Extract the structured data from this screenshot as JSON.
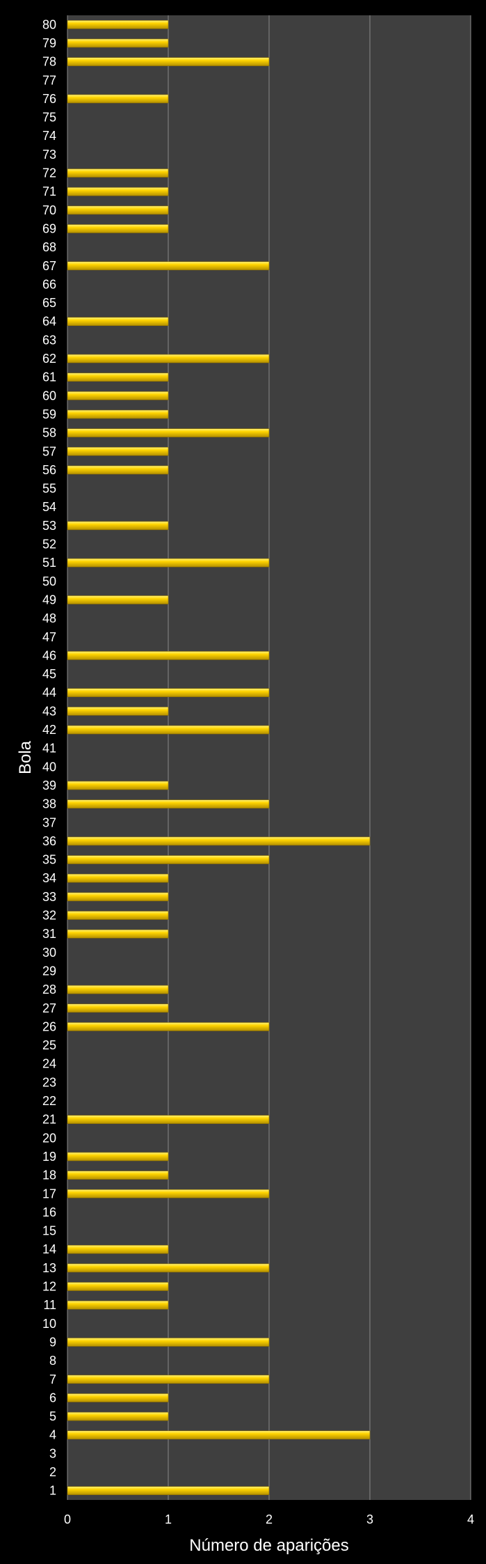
{
  "chart_data": {
    "type": "bar",
    "orientation": "horizontal",
    "title": "",
    "xlabel": "Número de aparições",
    "ylabel": "Bola",
    "xlim": [
      0,
      4
    ],
    "x_ticks": [
      0,
      1,
      2,
      3,
      4
    ],
    "grid": "vertical",
    "legend": "none",
    "colors": {
      "background": "#000000",
      "plot_area": "#3f3f3f",
      "bar_fill": "#ffd400",
      "bar_highlight": "#fff27a",
      "bar_shadow": "#b38f00",
      "grid": "#8a8a8a",
      "text": "#ffffff"
    },
    "categories": [
      "1",
      "2",
      "3",
      "4",
      "5",
      "6",
      "7",
      "8",
      "9",
      "10",
      "11",
      "12",
      "13",
      "14",
      "15",
      "16",
      "17",
      "18",
      "19",
      "20",
      "21",
      "22",
      "23",
      "24",
      "25",
      "26",
      "27",
      "28",
      "29",
      "30",
      "31",
      "32",
      "33",
      "34",
      "35",
      "36",
      "37",
      "38",
      "39",
      "40",
      "41",
      "42",
      "43",
      "44",
      "45",
      "46",
      "47",
      "48",
      "49",
      "50",
      "51",
      "52",
      "53",
      "54",
      "55",
      "56",
      "57",
      "58",
      "59",
      "60",
      "61",
      "62",
      "63",
      "64",
      "65",
      "66",
      "67",
      "68",
      "69",
      "70",
      "71",
      "72",
      "73",
      "74",
      "75",
      "76",
      "77",
      "78",
      "79",
      "80"
    ],
    "values": [
      2,
      0,
      0,
      3,
      1,
      1,
      2,
      0,
      2,
      0,
      1,
      1,
      2,
      1,
      0,
      0,
      2,
      1,
      1,
      0,
      2,
      0,
      0,
      0,
      0,
      2,
      1,
      1,
      0,
      0,
      1,
      1,
      1,
      1,
      2,
      3,
      0,
      2,
      1,
      0,
      0,
      2,
      1,
      2,
      0,
      2,
      0,
      0,
      1,
      0,
      2,
      0,
      1,
      0,
      0,
      1,
      1,
      2,
      1,
      1,
      1,
      2,
      0,
      1,
      0,
      0,
      2,
      0,
      1,
      1,
      1,
      1,
      0,
      0,
      0,
      1,
      0,
      2,
      1,
      1
    ]
  }
}
